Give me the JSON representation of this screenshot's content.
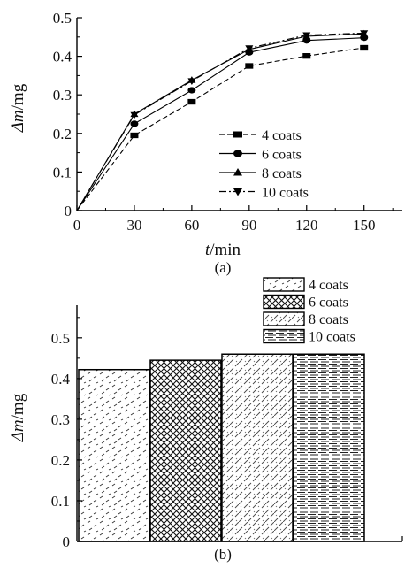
{
  "chart_data": [
    {
      "type": "line",
      "panel_label": "(a)",
      "xlabel_italic": "t",
      "xlabel_unit": "/min",
      "ylabel_italic": "Δm",
      "ylabel_unit": "/mg",
      "xlim": [
        0,
        170
      ],
      "ylim": [
        0,
        0.5
      ],
      "x_ticks": [
        0,
        30,
        60,
        90,
        120,
        150
      ],
      "y_ticks": [
        0,
        0.1,
        0.2,
        0.3,
        0.4,
        0.5
      ],
      "x_tick_labels": [
        "0",
        "30",
        "60",
        "90",
        "120",
        "150"
      ],
      "y_tick_labels": [
        "0",
        "0.1",
        "0.2",
        "0.3",
        "0.4",
        "0.5"
      ],
      "legend_position": "center-right",
      "grid": false,
      "x": [
        0,
        30,
        60,
        90,
        120,
        150
      ],
      "series": [
        {
          "name": "4 coats",
          "marker": "square",
          "dash": "dashed",
          "values": [
            0,
            0.195,
            0.282,
            0.375,
            0.401,
            0.422
          ]
        },
        {
          "name": "6 coats",
          "marker": "circle",
          "dash": "solid",
          "values": [
            0,
            0.225,
            0.312,
            0.41,
            0.441,
            0.448
          ]
        },
        {
          "name": "8 coats",
          "marker": "triangle",
          "dash": "solid",
          "values": [
            0,
            0.25,
            0.338,
            0.418,
            0.452,
            0.458
          ]
        },
        {
          "name": "10 coats",
          "marker": "inv-triangle",
          "dash": "dashdot",
          "values": [
            0,
            0.248,
            0.336,
            0.421,
            0.455,
            0.46
          ]
        }
      ]
    },
    {
      "type": "bar",
      "panel_label": "(b)",
      "ylabel_italic": "Δm",
      "ylabel_unit": "/mg",
      "ylim": [
        0,
        0.58
      ],
      "y_ticks": [
        0,
        0.1,
        0.2,
        0.3,
        0.4,
        0.5
      ],
      "y_tick_labels": [
        "0",
        "0.1",
        "0.2",
        "0.3",
        "0.4",
        "0.5"
      ],
      "legend_position": "top-right",
      "grid": false,
      "series": [
        {
          "name": "4 coats",
          "pattern": "dashes",
          "value": 0.422
        },
        {
          "name": "6 coats",
          "pattern": "crosshatch",
          "value": 0.445
        },
        {
          "name": "8 coats",
          "pattern": "diagonal",
          "value": 0.46
        },
        {
          "name": "10 coats",
          "pattern": "horizontal",
          "value": 0.46
        }
      ]
    }
  ]
}
